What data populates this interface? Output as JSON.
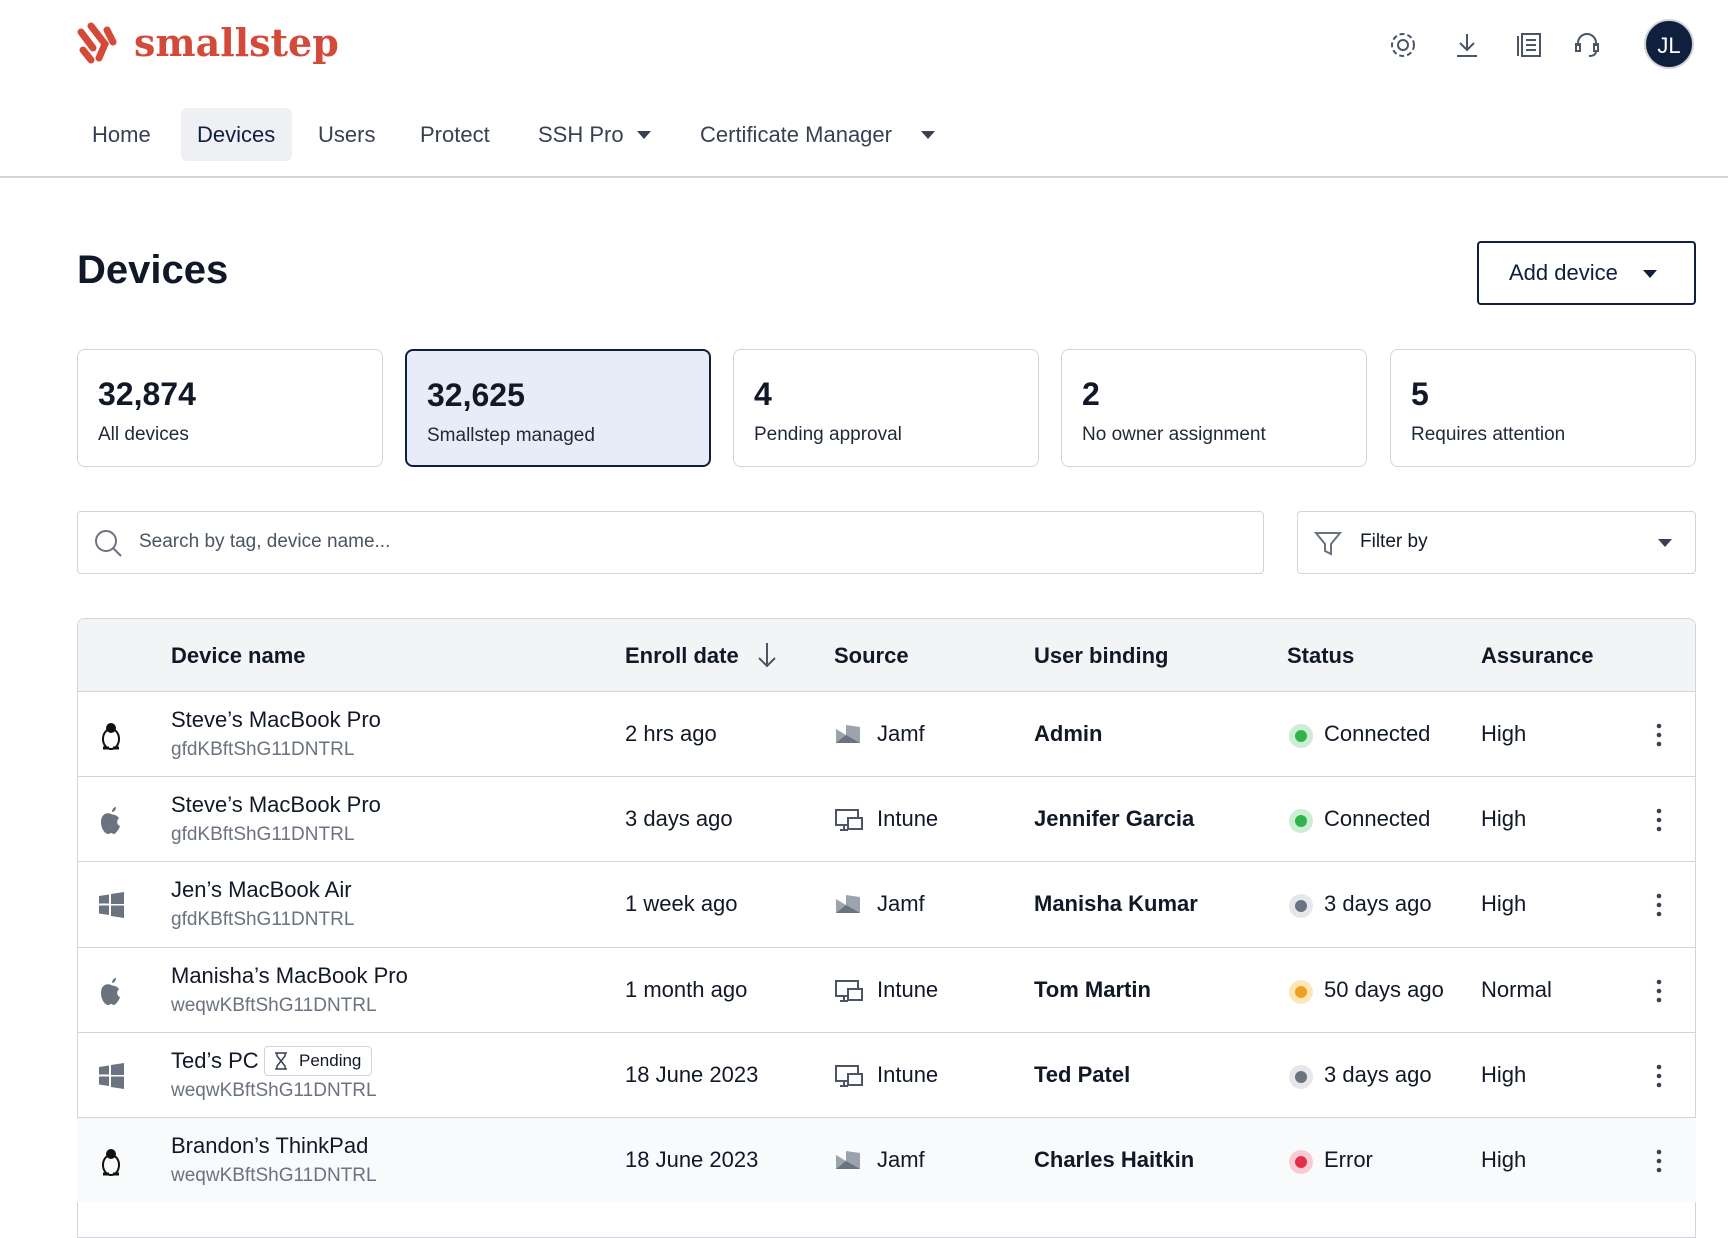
{
  "header": {
    "brand": "smallstep",
    "avatar": "JL"
  },
  "nav": [
    "Home",
    "Devices",
    "Users",
    "Protect",
    "SSH Pro",
    "Certificate Manager"
  ],
  "page": {
    "title": "Devices",
    "add_button": "Add device"
  },
  "stats": [
    {
      "value": "32,874",
      "label": "All devices"
    },
    {
      "value": "32,625",
      "label": "Smallstep managed"
    },
    {
      "value": "4",
      "label": "Pending approval"
    },
    {
      "value": "2",
      "label": "No owner assignment"
    },
    {
      "value": "5",
      "label": "Requires attention"
    }
  ],
  "search": {
    "placeholder": "Search by tag, device name...",
    "filter": "Filter by"
  },
  "table": {
    "columns": [
      "Device name",
      "Enroll date",
      "Source",
      "User binding",
      "Status",
      "Assurance"
    ],
    "rows": [
      {
        "name": "Steve’s MacBook Pro",
        "serial": "gfdKBftShG11DNTRL",
        "enroll": "2 hrs ago",
        "source": "Jamf",
        "user": "Admin",
        "status": "Connected",
        "assurance": "High"
      },
      {
        "name": "Steve’s MacBook Pro",
        "serial": "gfdKBftShG11DNTRL",
        "enroll": "3 days ago",
        "source": "Intune",
        "user": "Jennifer Garcia",
        "status": "Connected",
        "assurance": "High"
      },
      {
        "name": "Jen’s MacBook Air",
        "serial": "gfdKBftShG11DNTRL",
        "enroll": "1 week ago",
        "source": "Jamf",
        "user": "Manisha Kumar",
        "status": "3 days ago",
        "assurance": "High"
      },
      {
        "name": "Manisha’s MacBook Pro",
        "serial": "weqwKBftShG11DNTRL",
        "enroll": "1 month ago",
        "source": "Intune",
        "user": "Tom Martin",
        "status": "50 days ago",
        "assurance": "Normal"
      },
      {
        "name": "Ted’s PC",
        "badge": "Pending",
        "serial": "weqwKBftShG11DNTRL",
        "enroll": "18 June 2023",
        "source": "Intune",
        "user": "Ted Patel",
        "status": "3 days ago",
        "assurance": "High"
      },
      {
        "name": "Brandon’s ThinkPad",
        "serial": "weqwKBftShG11DNTRL",
        "enroll": "18 June 2023",
        "source": "Jamf",
        "user": "Charles Haitkin",
        "status": "Error",
        "assurance": "High"
      }
    ]
  }
}
